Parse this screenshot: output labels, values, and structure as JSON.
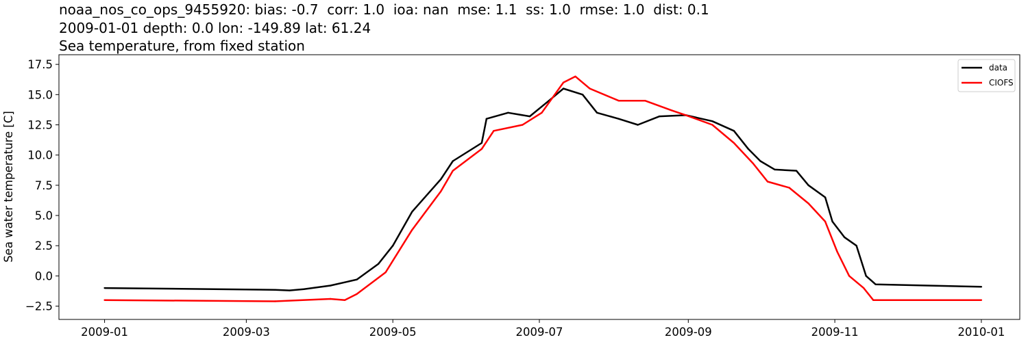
{
  "chart_data": {
    "type": "line",
    "title_lines": [
      "noaa_nos_co_ops_9455920: bias: -0.7  corr: 1.0  ioa: nan  mse: 1.1  ss: 1.0  rmse: 1.0  dist: 0.1",
      "2009-01-01 depth: 0.0 lon: -149.89 lat: 61.24",
      "Sea temperature, from fixed station"
    ],
    "xlabel": "",
    "ylabel": "Sea water temperature [C]",
    "xlim": [
      "2008-12-13",
      "2010-01-17"
    ],
    "ylim": [
      -3.6,
      18.3
    ],
    "x_ticks": [
      "2009-01",
      "2009-03",
      "2009-05",
      "2009-07",
      "2009-09",
      "2009-11",
      "2010-01"
    ],
    "x_tick_dates": [
      "2009-01-01",
      "2009-03-01",
      "2009-05-01",
      "2009-07-01",
      "2009-09-01",
      "2009-11-01",
      "2010-01-01"
    ],
    "y_ticks": [
      "−2.5",
      "0.0",
      "2.5",
      "5.0",
      "7.5",
      "10.0",
      "12.5",
      "15.0",
      "17.5"
    ],
    "y_tick_values": [
      -2.5,
      0,
      2.5,
      5,
      7.5,
      10,
      12.5,
      15,
      17.5
    ],
    "grid": false,
    "legend_position": "top-right",
    "series": [
      {
        "name": "data",
        "color": "#000000",
        "x": [
          "2009-01-01",
          "2009-03-13",
          "2009-03-19",
          "2009-03-25",
          "2009-04-05",
          "2009-04-16",
          "2009-04-25",
          "2009-05-01",
          "2009-05-09",
          "2009-05-21",
          "2009-05-26",
          "2009-06-07",
          "2009-06-09",
          "2009-06-18",
          "2009-06-27",
          "2009-07-05",
          "2009-07-11",
          "2009-07-19",
          "2009-07-25",
          "2009-08-03",
          "2009-08-11",
          "2009-08-20",
          "2009-08-31",
          "2009-09-11",
          "2009-09-20",
          "2009-09-26",
          "2009-10-01",
          "2009-10-07",
          "2009-10-16",
          "2009-10-21",
          "2009-10-28",
          "2009-10-31",
          "2009-11-05",
          "2009-11-10",
          "2009-11-14",
          "2009-11-18",
          "2010-01-01"
        ],
        "y": [
          -1.0,
          -1.15,
          -1.2,
          -1.1,
          -0.8,
          -0.3,
          1.0,
          2.5,
          5.3,
          8.0,
          9.5,
          11.0,
          13.0,
          13.5,
          13.2,
          14.5,
          15.5,
          15.0,
          13.5,
          13.0,
          12.5,
          13.2,
          13.3,
          12.8,
          12.0,
          10.5,
          9.5,
          8.8,
          8.7,
          7.5,
          6.5,
          4.5,
          3.2,
          2.5,
          0.0,
          -0.7,
          -0.9
        ]
      },
      {
        "name": "CIOFS",
        "color": "#ff0000",
        "x": [
          "2009-01-01",
          "2009-03-13",
          "2009-04-05",
          "2009-04-11",
          "2009-04-16",
          "2009-04-28",
          "2009-05-09",
          "2009-05-21",
          "2009-05-26",
          "2009-06-07",
          "2009-06-12",
          "2009-06-24",
          "2009-07-02",
          "2009-07-11",
          "2009-07-16",
          "2009-07-22",
          "2009-08-03",
          "2009-08-14",
          "2009-08-25",
          "2009-08-31",
          "2009-09-11",
          "2009-09-20",
          "2009-09-28",
          "2009-10-04",
          "2009-10-13",
          "2009-10-21",
          "2009-10-28",
          "2009-11-02",
          "2009-11-07",
          "2009-11-13",
          "2009-11-17",
          "2010-01-01"
        ],
        "y": [
          -2.0,
          -2.1,
          -1.9,
          -2.0,
          -1.5,
          0.3,
          3.8,
          7.0,
          8.7,
          10.5,
          12.0,
          12.5,
          13.5,
          16.0,
          16.5,
          15.5,
          14.5,
          14.5,
          13.7,
          13.3,
          12.5,
          11.0,
          9.3,
          7.8,
          7.3,
          6.0,
          4.5,
          2.0,
          0.0,
          -1.0,
          -2.0,
          -2.0
        ]
      }
    ]
  }
}
